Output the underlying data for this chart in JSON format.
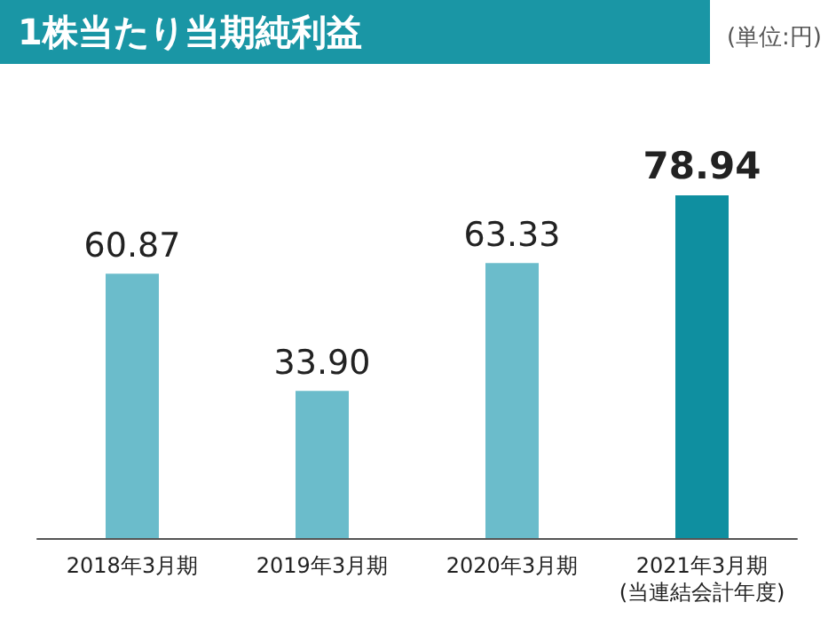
{
  "chart_data": {
    "type": "bar",
    "title": "1株当たり当期純利益",
    "subtitle": "(単位:円)",
    "categories": [
      "2018年3月期",
      "2019年3月期",
      "2020年3月期",
      "2021年3月期\n(当連結会計年度)"
    ],
    "values": [
      60.87,
      33.9,
      63.33,
      78.94
    ],
    "colors": [
      "#6bbccb",
      "#6bbccb",
      "#6bbccb",
      "#0f8fa0"
    ],
    "value_labels": [
      "60.87",
      "33.90",
      "63.33",
      "78.94"
    ],
    "grid": false
  }
}
